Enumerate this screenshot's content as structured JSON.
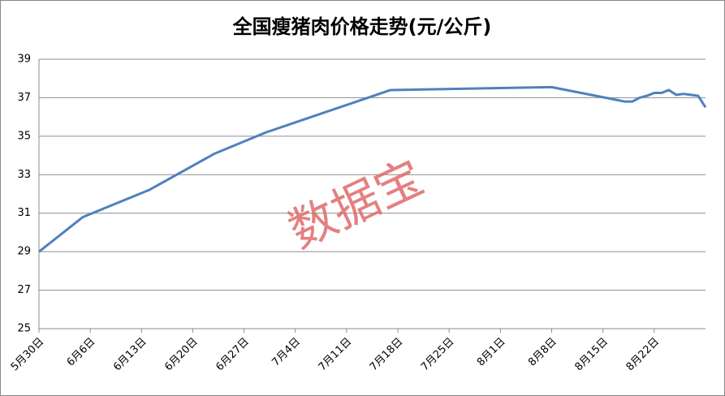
{
  "chart_data": {
    "type": "line",
    "title": "全国瘦猪肉价格走势(元/公斤)",
    "watermark": "数据宝",
    "x": [
      "5月30日",
      "6月5日",
      "6月14日",
      "6月23日",
      "6月30日",
      "7月17日",
      "8月8日",
      "8月18日",
      "8月19日",
      "8月20日",
      "8月21日",
      "8月22日",
      "8月23日",
      "8月24日",
      "8月25日",
      "8月26日",
      "8月27日",
      "8月28日",
      "8月29日"
    ],
    "series": [
      {
        "name": "瘦猪肉价格",
        "color": "#4f81bd",
        "values": [
          29.0,
          30.8,
          32.2,
          34.1,
          35.2,
          37.4,
          37.55,
          36.8,
          36.8,
          37.0,
          37.1,
          37.25,
          37.25,
          37.4,
          37.15,
          37.2,
          37.15,
          37.1,
          36.5
        ]
      }
    ],
    "xticks": [
      "5月30日",
      "6月6日",
      "6月13日",
      "6月20日",
      "6月27日",
      "7月4日",
      "7月11日",
      "7月18日",
      "7月25日",
      "8月1日",
      "8月8日",
      "8月15日",
      "8月22日"
    ],
    "ylim": [
      25,
      39
    ],
    "yticks": [
      25,
      27,
      29,
      31,
      33,
      35,
      37,
      39
    ],
    "grid": true
  }
}
